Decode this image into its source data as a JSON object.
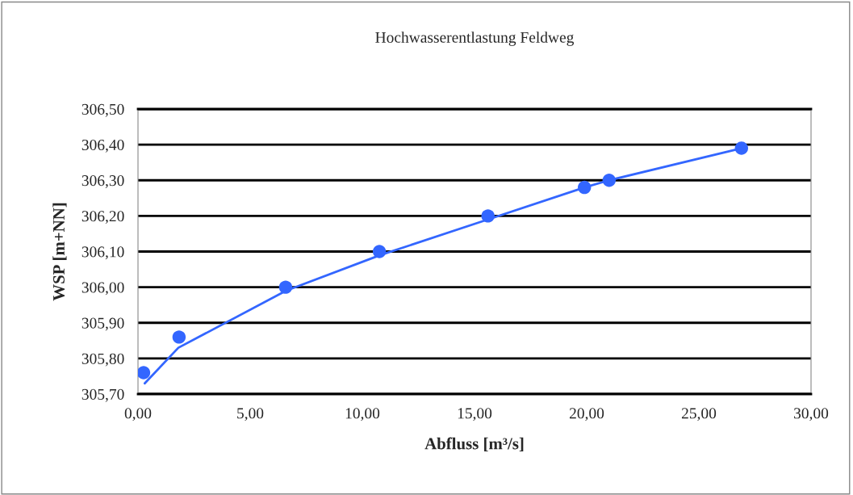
{
  "chart_data": {
    "type": "scatter",
    "title": "Hochwasserentlastung Feldweg",
    "xlabel": "Abfluss [m³/s]",
    "ylabel": "WSP [m+NN]",
    "series": [
      {
        "color": "#3366ff",
        "x": [
          0.25,
          1.83,
          6.58,
          10.76,
          15.6,
          19.9,
          21.0,
          26.9
        ],
        "values": [
          305.76,
          305.86,
          306.0,
          306.1,
          306.2,
          306.28,
          306.3,
          306.39
        ],
        "marker": "circle"
      },
      {
        "type": "line",
        "color": "#3366ff",
        "x": [
          0.3,
          1.8,
          6.6,
          10.8,
          15.6,
          19.9,
          21.0,
          26.9
        ],
        "values": [
          305.73,
          305.83,
          305.99,
          306.09,
          306.19,
          306.28,
          306.3,
          306.39
        ],
        "marker": "none"
      }
    ],
    "xlim": [
      0,
      30
    ],
    "ylim": [
      305.7,
      306.5
    ],
    "xticks": [
      {
        "value": 0,
        "label": "0,00"
      },
      {
        "value": 5,
        "label": "5,00"
      },
      {
        "value": 10,
        "label": "10,00"
      },
      {
        "value": 15,
        "label": "15,00"
      },
      {
        "value": 20,
        "label": "20,00"
      },
      {
        "value": 25,
        "label": "25,00"
      },
      {
        "value": 30,
        "label": "30,00"
      }
    ],
    "yticks": [
      {
        "value": 305.7,
        "label": "305,70"
      },
      {
        "value": 305.8,
        "label": "305,80"
      },
      {
        "value": 305.9,
        "label": "305,90"
      },
      {
        "value": 306.0,
        "label": "306,00"
      },
      {
        "value": 306.1,
        "label": "306,10"
      },
      {
        "value": 306.2,
        "label": "306,20"
      },
      {
        "value": 306.3,
        "label": "306,30"
      },
      {
        "value": 306.4,
        "label": "306,40"
      },
      {
        "value": 306.5,
        "label": "306,50"
      }
    ],
    "grid": "y",
    "legend": false
  }
}
